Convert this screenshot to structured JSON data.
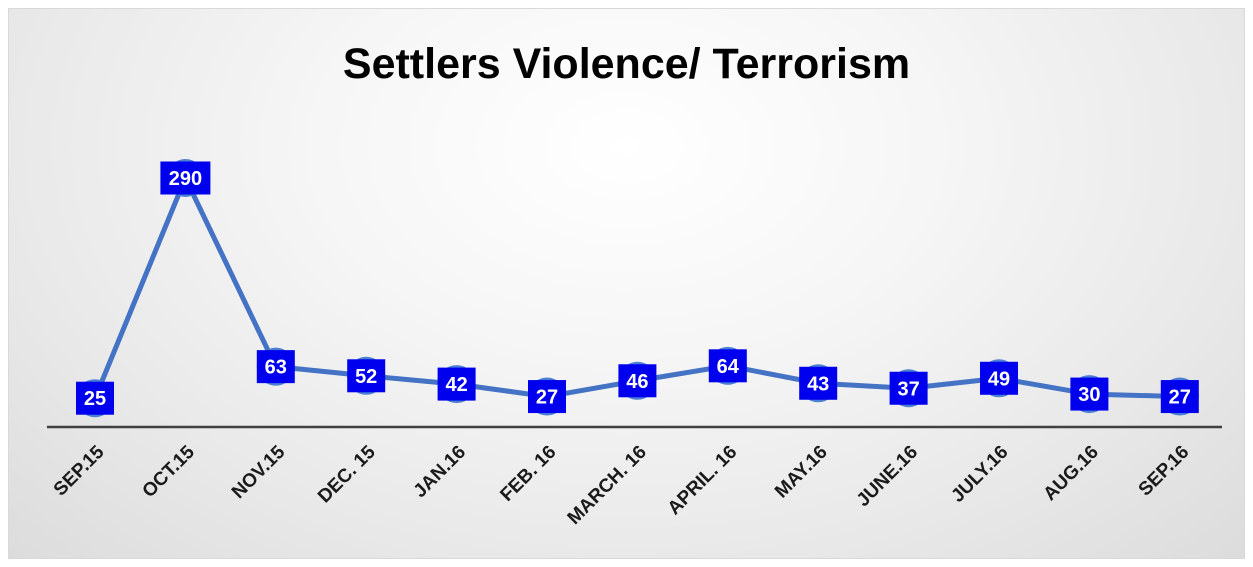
{
  "chart_data": {
    "type": "line",
    "title": "Settlers Violence/ Terrorism",
    "xlabel": "",
    "ylabel": "",
    "categories": [
      "SEP.15",
      "OCT.15",
      "NOV.15",
      "DEC. 15",
      "JAN.16",
      "FEB. 16",
      "MARCH. 16",
      "APRIL. 16",
      "MAY.16",
      "JUNE.16",
      "JULY.16",
      "AUG.16",
      "SEP.16"
    ],
    "series": [
      {
        "values": [
          25,
          290,
          63,
          52,
          42,
          27,
          46,
          64,
          43,
          37,
          49,
          30,
          27
        ]
      }
    ],
    "ylim": [
      0,
      300
    ],
    "grid": false,
    "legend": "none",
    "data_labels": true,
    "colors": {
      "line": "#4472c4",
      "marker": "#4a7fd4",
      "label_bg": "#0000ee",
      "label_text": "#ffffff",
      "axis": "#404040"
    }
  }
}
